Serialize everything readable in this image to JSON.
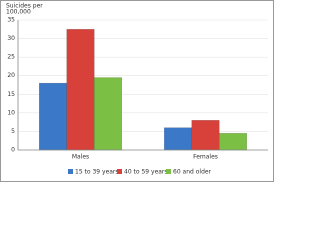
{
  "chart_data": {
    "type": "bar",
    "y_label": [
      "Suicides per",
      "100,000"
    ],
    "categories": [
      "Males",
      "Females"
    ],
    "series": [
      {
        "name": "15 to 39 years",
        "color": "#3b78c8",
        "values": [
          18,
          6
        ]
      },
      {
        "name": "40 to 59 years",
        "color": "#d8403a",
        "values": [
          32.5,
          8
        ]
      },
      {
        "name": "60 and older",
        "color": "#7cbf45",
        "values": [
          19.5,
          4.5
        ]
      }
    ],
    "ylim": [
      0,
      35
    ],
    "yticks": [
      0,
      5,
      10,
      15,
      20,
      25,
      30,
      35
    ],
    "grid": true,
    "legend": "bottom"
  }
}
